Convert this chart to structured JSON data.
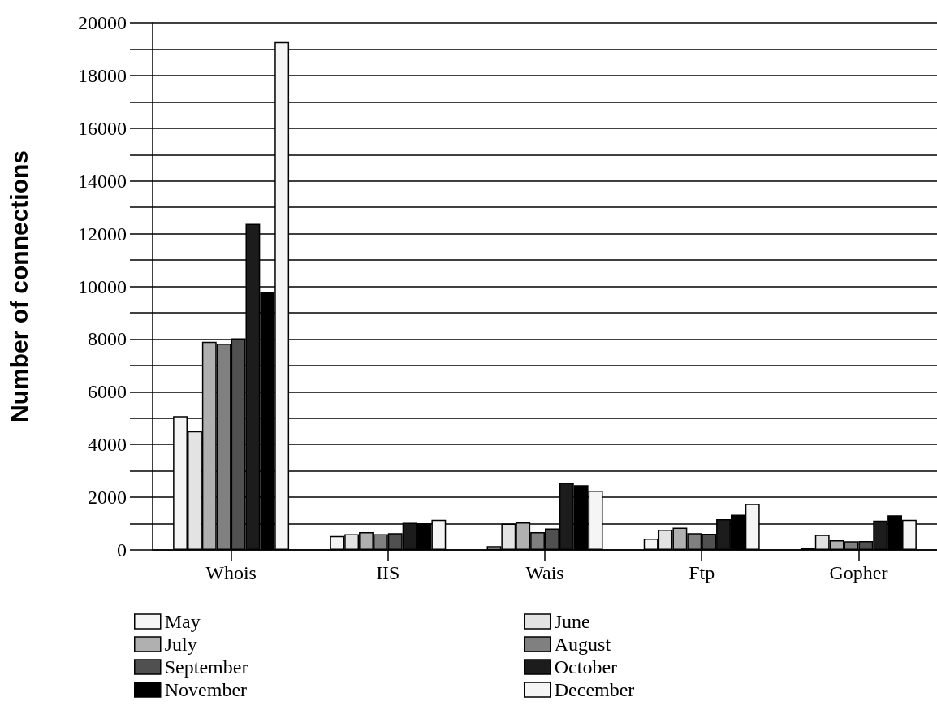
{
  "chart_data": {
    "type": "bar",
    "ylabel": "Number of connections",
    "categories": [
      "Whois",
      "IIS",
      "Wais",
      "Ftp",
      "Gopher"
    ],
    "series": [
      {
        "name": "May",
        "color": "#f5f5f5",
        "values": [
          5080,
          530,
          150,
          430,
          80
        ]
      },
      {
        "name": "June",
        "color": "#e3e3e3",
        "values": [
          4510,
          600,
          1000,
          770,
          580
        ]
      },
      {
        "name": "July",
        "color": "#b0b0b0",
        "values": [
          7900,
          680,
          1050,
          850,
          370
        ]
      },
      {
        "name": "August",
        "color": "#808080",
        "values": [
          7830,
          600,
          680,
          640,
          330
        ]
      },
      {
        "name": "September",
        "color": "#505050",
        "values": [
          8030,
          640,
          820,
          620,
          340
        ]
      },
      {
        "name": "October",
        "color": "#1c1c1c",
        "values": [
          12370,
          1030,
          2550,
          1170,
          1120
        ]
      },
      {
        "name": "November",
        "color": "#000000",
        "values": [
          9770,
          1020,
          2460,
          1340,
          1320
        ]
      },
      {
        "name": "December",
        "color": "#f5f5f5",
        "values": [
          19270,
          1150,
          2250,
          1750,
          1150
        ]
      }
    ],
    "ylim": [
      0,
      20000
    ],
    "yticks": [
      0,
      {
        "value": 1000,
        "label": null
      },
      2000,
      {
        "value": 3000,
        "label": null
      },
      4000,
      {
        "value": 5000,
        "label": null
      },
      6000,
      {
        "value": 7000,
        "label": null
      },
      8000,
      {
        "value": 9000,
        "label": null
      },
      10000,
      {
        "value": 11000,
        "label": null
      },
      12000,
      {
        "value": 13000,
        "label": null
      },
      14000,
      {
        "value": 15000,
        "label": null
      },
      16000,
      {
        "value": 17000,
        "label": null
      },
      18000,
      {
        "value": 19000,
        "label": null
      },
      20000
    ],
    "grid": "y",
    "legend": "bottom"
  }
}
